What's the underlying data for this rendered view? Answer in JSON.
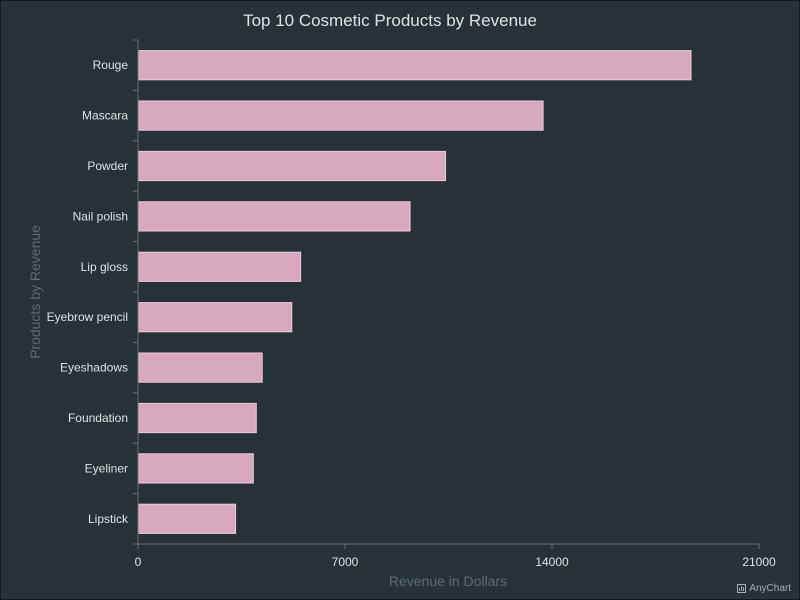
{
  "chart_data": {
    "type": "bar",
    "orientation": "horizontal",
    "title": "Top 10 Cosmetic Products by Revenue",
    "xlabel": "Revenue in Dollars",
    "ylabel": "Products by Revenue",
    "categories": [
      "Rouge",
      "Mascara",
      "Powder",
      "Nail polish",
      "Lip gloss",
      "Eyebrow pencil",
      "Eyeshadows",
      "Foundation",
      "Eyeliner",
      "Lipstick"
    ],
    "values": [
      18700,
      13700,
      10400,
      9200,
      5500,
      5200,
      4200,
      4000,
      3900,
      3300
    ],
    "xlim": [
      0,
      21000
    ],
    "xticks": [
      0,
      7000,
      14000,
      21000
    ],
    "grid": false,
    "legend": "none",
    "colors": {
      "background": "#263238",
      "bar_fill": "#d8a8bc",
      "bar_stroke": "#eccbd8",
      "axis": "#64707a",
      "title": "#e1e1e1",
      "tick_label": "#e1e1e1",
      "axis_title": "#5d6a72"
    }
  },
  "credit": "AnyChart",
  "credit_icon": "bar-chart-icon"
}
